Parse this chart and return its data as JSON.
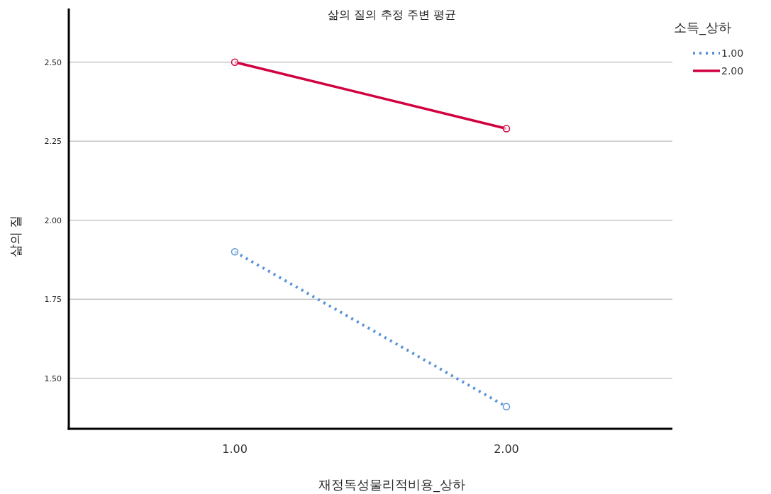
{
  "chart_data": {
    "type": "line",
    "title": "삶의 질의 추정 주변 평균",
    "xlabel": "재정독성물리적비용_상하",
    "ylabel": "삶의 질",
    "legend_title": "소득_상하",
    "categories": [
      "1.00",
      "2.00"
    ],
    "series": [
      {
        "name": "1.00",
        "color": "#5b93d8",
        "values": [
          1.9,
          1.41
        ],
        "line_style": "dotted"
      },
      {
        "name": "2.00",
        "color": "#d1003f",
        "values": [
          2.5,
          2.29
        ],
        "line_style": "solid"
      }
    ],
    "ylim": [
      1.34,
      2.67
    ],
    "yticks": [
      {
        "value": 1.5,
        "label": "1.50"
      },
      {
        "value": 1.75,
        "label": "1.75"
      },
      {
        "value": 2.0,
        "label": "2.00"
      },
      {
        "value": 2.25,
        "label": "2.25"
      },
      {
        "value": 2.5,
        "label": "2.50"
      }
    ],
    "grid": "y",
    "legend": "right",
    "marker": "circle"
  }
}
